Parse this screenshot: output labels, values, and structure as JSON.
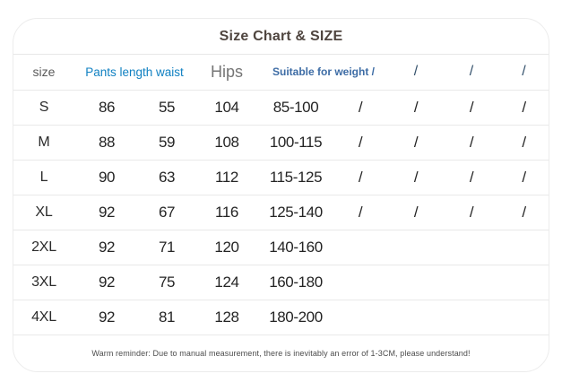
{
  "colors": {
    "background": "#ffffff",
    "card_border": "#ececec",
    "divider": "#e9e9e9",
    "title_text": "#4f453f",
    "accent_blue": "#1181c2",
    "steel_blue": "#3d6ca5",
    "data_text": "#242424",
    "gray_header_text": "#5a5a5a",
    "note_text": "#4c4c4c"
  },
  "chart_data": {
    "type": "table",
    "title": "Size Chart & SIZE",
    "header": {
      "size": "size",
      "pants_length_waist": "Pants length waist",
      "hips": "Hips",
      "suitable_for_weight": "Suitable for weight /",
      "slashes": [
        "/",
        "/",
        "/"
      ]
    },
    "columns": [
      "size",
      "Pants length",
      "waist",
      "Hips",
      "Suitable for weight",
      "/",
      "/",
      "/",
      "/"
    ],
    "rows": [
      [
        "S",
        "86",
        "55",
        "104",
        "85-100",
        "/",
        "/",
        "/",
        "/"
      ],
      [
        "M",
        "88",
        "59",
        "108",
        "100-115",
        "/",
        "/",
        "/",
        "/"
      ],
      [
        "L",
        "90",
        "63",
        "112",
        "115-125",
        "/",
        "/",
        "/",
        "/"
      ],
      [
        "XL",
        "92",
        "67",
        "116",
        "125-140",
        "/",
        "/",
        "/",
        "/"
      ],
      [
        "2XL",
        "92",
        "71",
        "120",
        "140-160",
        "",
        "",
        "",
        ""
      ],
      [
        "3XL",
        "92",
        "75",
        "124",
        "160-180",
        "",
        "",
        "",
        ""
      ],
      [
        "4XL",
        "92",
        "81",
        "128",
        "180-200",
        "",
        "",
        "",
        ""
      ]
    ],
    "footer": "Warm reminder: Due to manual measurement, there is inevitably an error of 1-3CM, please understand!"
  }
}
